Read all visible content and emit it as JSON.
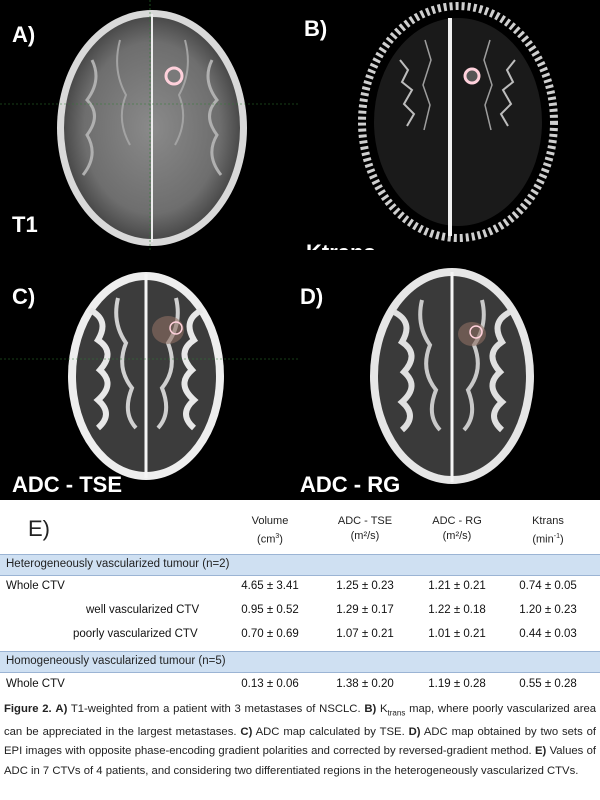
{
  "panels": {
    "a": {
      "letter": "A)",
      "caption": "T1"
    },
    "b": {
      "letter": "B)",
      "caption": "Ktrans"
    },
    "c": {
      "letter": "C)",
      "caption": "ADC - TSE"
    },
    "d": {
      "letter": "D)",
      "caption": "ADC - RG"
    }
  },
  "table": {
    "label": "E)",
    "headers": {
      "volume": "Volume",
      "volume_unit": "(cm",
      "volume_sup": "3",
      "adc_tse": "ADC - TSE",
      "adc_tse_unit": "(m²/s)",
      "adc_rg": "ADC - RG",
      "adc_rg_unit": "(m²/s)",
      "ktrans": "Ktrans",
      "ktrans_unit": "(min",
      "ktrans_sup": "-1"
    },
    "section1": "Heterogeneously vascularized tumour (n=2)",
    "section2": "Homogeneously vascularized tumour (n=5)",
    "rows": [
      {
        "label": "Whole CTV",
        "volume": "4.65 ± 3.41",
        "adc_tse": "1.25 ± 0.23",
        "adc_rg": "1.21 ± 0.21",
        "ktrans": "0.74 ± 0.05"
      },
      {
        "label": "well vascularized CTV",
        "volume": "0.95 ± 0.52",
        "adc_tse": "1.29 ± 0.17",
        "adc_rg": "1.22 ± 0.18",
        "ktrans": "1.20 ± 0.23"
      },
      {
        "label": "poorly vascularized CTV",
        "volume": "0.70 ± 0.69",
        "adc_tse": "1.07 ± 0.21",
        "adc_rg": "1.01 ± 0.21",
        "ktrans": "0.44 ± 0.03"
      },
      {
        "label": "Whole CTV",
        "volume": "0.13 ± 0.06",
        "adc_tse": "1.38 ± 0.20",
        "adc_rg": "1.19 ± 0.28",
        "ktrans": "0.55 ± 0.28"
      }
    ]
  },
  "caption": {
    "fig": "Figure 2.",
    "a_bold": "A)",
    "a_text": "T1-weighted from a patient with 3 metastases of NSCLC.",
    "b_bold": "B)",
    "b_text1": "K",
    "b_sub": "trans",
    "b_text2": "map, where poorly vascularized area can be appreciated in the largest metastases.",
    "c_bold": "C)",
    "c_text": "ADC map calculated by TSE.",
    "d_bold": "D)",
    "d_text": "ADC map obtained by two sets of EPI images with opposite phase-encoding gradient polarities and corrected by reversed-gradient method.",
    "e_bold": "E)",
    "e_text": "Values of ADC in 7 CTVs of 4 patients, and considering two differentiated regions in the heterogeneously vascularized CTVs."
  }
}
